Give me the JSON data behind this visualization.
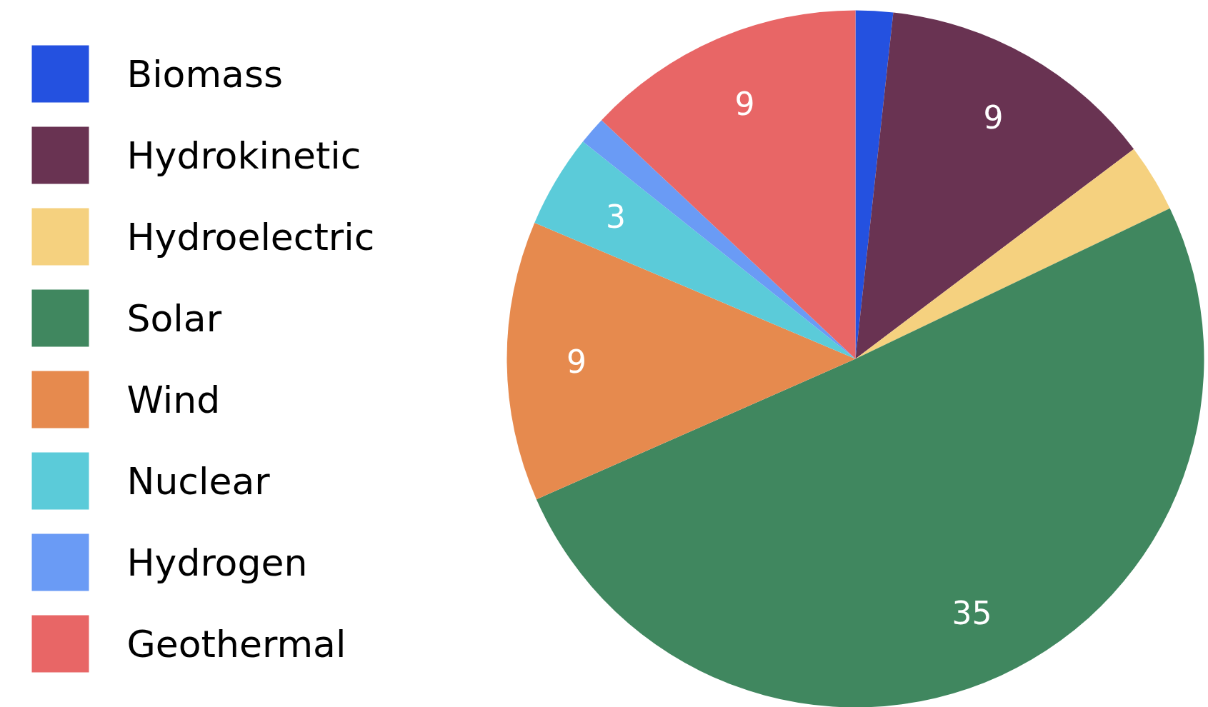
{
  "chart_data": {
    "type": "pie",
    "categories": [
      "Biomass",
      "Hydrokinetic",
      "Hydroelectric",
      "Solar",
      "Wind",
      "Nuclear",
      "Hydrogen",
      "Geothermal"
    ],
    "values": [
      1.2,
      9,
      2.2,
      35,
      9,
      3,
      0.9,
      9
    ],
    "value_labels": [
      null,
      "9",
      null,
      "35",
      "9",
      "3",
      null,
      "9"
    ],
    "colors": [
      "#2451e0",
      "#693352",
      "#f5d17f",
      "#40875f",
      "#e68a4e",
      "#5bcbd9",
      "#6a9bf5",
      "#e86666"
    ],
    "legend": "left"
  }
}
